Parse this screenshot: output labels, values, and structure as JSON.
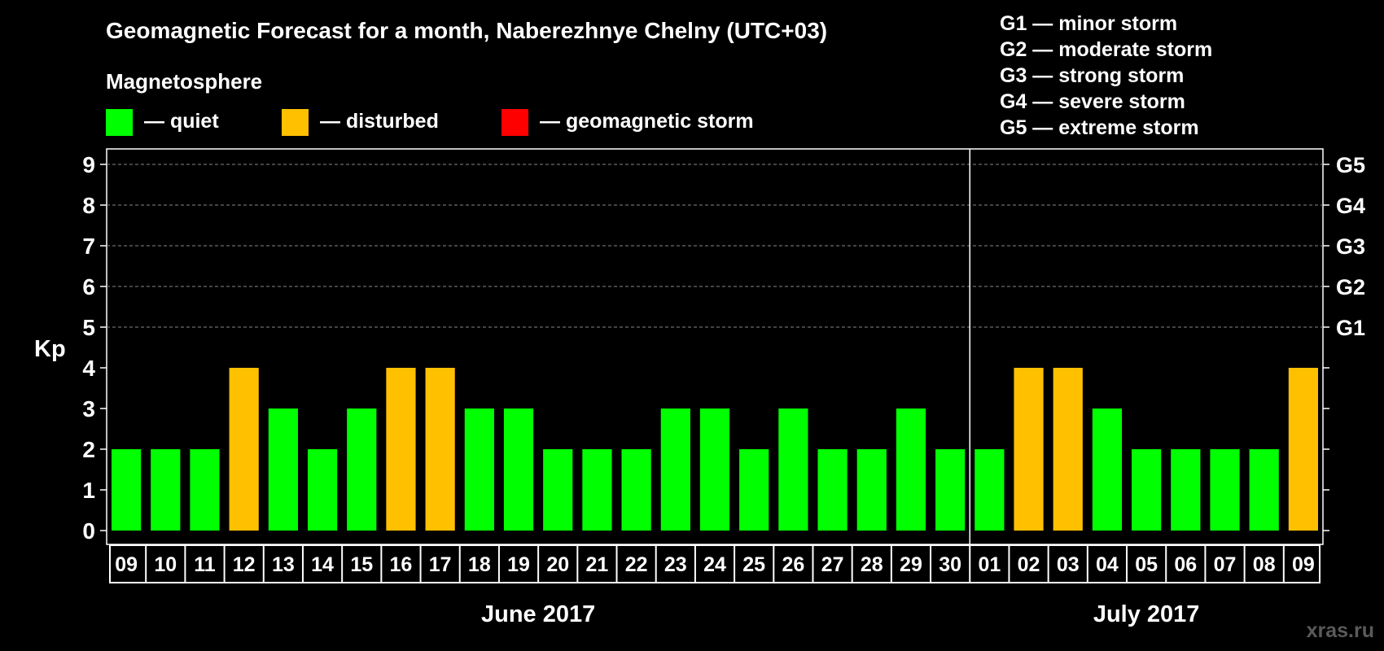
{
  "chart_data": {
    "type": "bar",
    "title": "Geomagnetic Forecast for a month, Naberezhnye Chelny (UTC+03)",
    "legend": {
      "title": "Magnetosphere",
      "items": [
        {
          "label": "— quiet",
          "color": "#00ff00"
        },
        {
          "label": "— disturbed",
          "color": "#ffc000"
        },
        {
          "label": "— geomagnetic storm",
          "color": "#ff0000"
        }
      ]
    },
    "storm_scale": [
      "G1 — minor storm",
      "G2 — moderate storm",
      "G3 — strong storm",
      "G4 — severe storm",
      "G5 — extreme storm"
    ],
    "ylabel": "Kp",
    "ylim": [
      0,
      9
    ],
    "yticks": [
      "0",
      "1",
      "2",
      "3",
      "4",
      "5",
      "6",
      "7",
      "8",
      "9"
    ],
    "right_ticks": [
      {
        "value": 5,
        "label": "G1"
      },
      {
        "value": 6,
        "label": "G2"
      },
      {
        "value": 7,
        "label": "G3"
      },
      {
        "value": 8,
        "label": "G4"
      },
      {
        "value": 9,
        "label": "G5"
      }
    ],
    "grid": "dashed at Kp 5-9",
    "categories": [
      "09",
      "10",
      "11",
      "12",
      "13",
      "14",
      "15",
      "16",
      "17",
      "18",
      "19",
      "20",
      "21",
      "22",
      "23",
      "24",
      "25",
      "26",
      "27",
      "28",
      "29",
      "30",
      "01",
      "02",
      "03",
      "04",
      "05",
      "06",
      "07",
      "08",
      "09"
    ],
    "values": [
      2,
      2,
      2,
      4,
      3,
      2,
      3,
      4,
      4,
      3,
      3,
      2,
      2,
      2,
      3,
      3,
      2,
      3,
      2,
      2,
      3,
      2,
      2,
      4,
      4,
      3,
      2,
      2,
      2,
      2,
      4
    ],
    "status": [
      "quiet",
      "quiet",
      "quiet",
      "disturbed",
      "quiet",
      "quiet",
      "quiet",
      "disturbed",
      "disturbed",
      "quiet",
      "quiet",
      "quiet",
      "quiet",
      "quiet",
      "quiet",
      "quiet",
      "quiet",
      "quiet",
      "quiet",
      "quiet",
      "quiet",
      "quiet",
      "quiet",
      "disturbed",
      "disturbed",
      "quiet",
      "quiet",
      "quiet",
      "quiet",
      "quiet",
      "disturbed"
    ],
    "colors": {
      "quiet": "#00ff00",
      "disturbed": "#ffc000",
      "storm": "#ff0000"
    },
    "months": [
      {
        "label": "June 2017",
        "start": 0,
        "end": 21
      },
      {
        "label": "July 2017",
        "start": 22,
        "end": 30
      }
    ]
  },
  "watermark": "xras.ru"
}
